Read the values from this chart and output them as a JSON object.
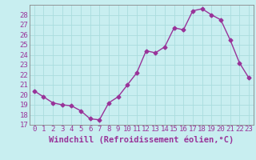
{
  "x": [
    0,
    1,
    2,
    3,
    4,
    5,
    6,
    7,
    8,
    9,
    10,
    11,
    12,
    13,
    14,
    15,
    16,
    17,
    18,
    19,
    20,
    21,
    22,
    23
  ],
  "y": [
    20.4,
    19.8,
    19.2,
    19.0,
    18.9,
    18.4,
    17.6,
    17.5,
    19.2,
    19.8,
    21.0,
    22.2,
    24.4,
    24.2,
    24.8,
    26.7,
    26.5,
    28.4,
    28.6,
    28.0,
    27.5,
    25.5,
    23.2,
    21.7
  ],
  "line_color": "#993399",
  "marker": "D",
  "markersize": 2.5,
  "linewidth": 1.0,
  "bg_color": "#c8eef0",
  "grid_color": "#aadddd",
  "xlabel": "Windchill (Refroidissement éolien,°C)",
  "xlabel_fontsize": 7.5,
  "tick_fontsize": 6.5,
  "tick_color": "#993399",
  "ylim": [
    17,
    29
  ],
  "yticks": [
    17,
    18,
    19,
    20,
    21,
    22,
    23,
    24,
    25,
    26,
    27,
    28
  ],
  "xticks": [
    0,
    1,
    2,
    3,
    4,
    5,
    6,
    7,
    8,
    9,
    10,
    11,
    12,
    13,
    14,
    15,
    16,
    17,
    18,
    19,
    20,
    21,
    22,
    23
  ]
}
